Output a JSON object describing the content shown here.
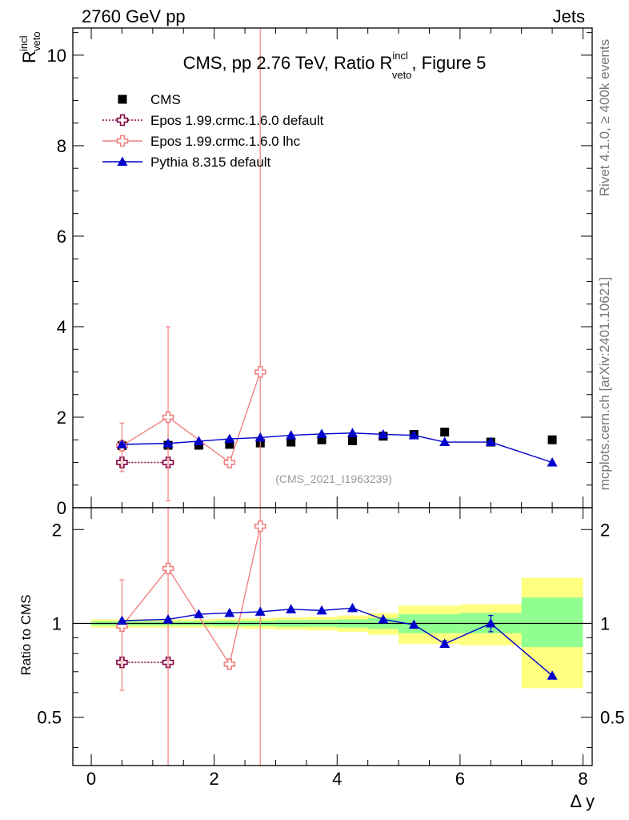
{
  "header": {
    "left": "2760 GeV pp",
    "right": "Jets"
  },
  "side": {
    "rivet": "Rivet 4.1.0, ≥ 400k events",
    "mcplots": "mcplots.cern.ch [arXiv:2401.10621]"
  },
  "chart_data": [
    {
      "type": "scatter",
      "title_main": "CMS, pp 2.76 TeV, Ratio R",
      "title_sup": "incl",
      "title_sub": "veto",
      "title_tail": ", Figure 5",
      "ylabel_main": "R",
      "ylabel_sup": "incl",
      "ylabel_sub": "veto",
      "watermark": "(CMS_2021_I1963239)",
      "ylim": [
        0,
        10.6
      ],
      "yticks": [
        0,
        2,
        4,
        6,
        8,
        10
      ],
      "ytick_labels": [
        "0",
        "2",
        "4",
        "6",
        "8",
        "10"
      ],
      "legend": [
        {
          "label": "CMS",
          "marker": "square",
          "color": "#000000"
        },
        {
          "label": "Epos 1.99.crmc.1.6.0 default",
          "marker": "cross-open",
          "color": "#800040",
          "line": "dotted"
        },
        {
          "label": "Epos 1.99.crmc.1.6.0 lhc",
          "marker": "cross-open",
          "color": "#f08080",
          "line": "solid"
        },
        {
          "label": "Pythia 8.315 default",
          "marker": "triangle",
          "color": "#0000cc",
          "line": "solid"
        }
      ],
      "series": [
        {
          "name": "CMS",
          "x": [
            0.5,
            1.25,
            1.75,
            2.25,
            2.75,
            3.25,
            3.75,
            4.25,
            4.75,
            5.25,
            5.75,
            6.5,
            7.5
          ],
          "y": [
            1.37,
            1.38,
            1.38,
            1.4,
            1.43,
            1.45,
            1.5,
            1.48,
            1.58,
            1.62,
            1.67,
            1.45,
            1.5
          ]
        },
        {
          "name": "Epos 1.99.crmc.1.6.0 default",
          "x": [
            0.5,
            1.25
          ],
          "y": [
            1.0,
            1.0
          ]
        },
        {
          "name": "Epos 1.99.crmc.1.6.0 lhc",
          "x": [
            0.5,
            1.25,
            2.25,
            2.75
          ],
          "y": [
            1.37,
            2.0,
            1.0,
            3.0
          ],
          "err_low": [
            0.57,
            1.85,
            0.0,
            3.0
          ],
          "err_high": [
            0.5,
            2.0,
            0.0,
            10.0
          ]
        },
        {
          "name": "Pythia 8.315 default",
          "x": [
            0.5,
            1.25,
            1.75,
            2.25,
            2.75,
            3.25,
            3.75,
            4.25,
            4.75,
            5.25,
            5.75,
            6.5,
            7.5
          ],
          "y": [
            1.4,
            1.42,
            1.47,
            1.52,
            1.55,
            1.6,
            1.63,
            1.65,
            1.62,
            1.6,
            1.45,
            1.45,
            1.0
          ]
        }
      ]
    },
    {
      "type": "scatter",
      "ylabel": "Ratio to CMS",
      "xlabel": "Δ y",
      "xlim": [
        -0.3,
        8.15
      ],
      "xticks": [
        0,
        2,
        4,
        6,
        8
      ],
      "xtick_labels": [
        "0",
        "2",
        "4",
        "6",
        "8"
      ],
      "ylim": [
        0.35,
        2.35
      ],
      "yticks": [
        0.5,
        1,
        2
      ],
      "ytick_labels": [
        "0.5",
        "1",
        "2"
      ],
      "bands": [
        {
          "x0": 0.0,
          "x1": 0.5,
          "green": [
            0.985,
            1.015
          ],
          "yellow": [
            0.97,
            1.03
          ]
        },
        {
          "x0": 0.5,
          "x1": 1.0,
          "green": [
            0.985,
            1.015
          ],
          "yellow": [
            0.97,
            1.03
          ]
        },
        {
          "x0": 1.0,
          "x1": 1.5,
          "green": [
            0.985,
            1.015
          ],
          "yellow": [
            0.97,
            1.03
          ]
        },
        {
          "x0": 1.5,
          "x1": 2.0,
          "green": [
            0.985,
            1.015
          ],
          "yellow": [
            0.97,
            1.03
          ]
        },
        {
          "x0": 2.0,
          "x1": 2.5,
          "green": [
            0.98,
            1.02
          ],
          "yellow": [
            0.965,
            1.035
          ]
        },
        {
          "x0": 2.5,
          "x1": 3.0,
          "green": [
            0.98,
            1.02
          ],
          "yellow": [
            0.96,
            1.04
          ]
        },
        {
          "x0": 3.0,
          "x1": 3.5,
          "green": [
            0.975,
            1.025
          ],
          "yellow": [
            0.955,
            1.045
          ]
        },
        {
          "x0": 3.5,
          "x1": 4.0,
          "green": [
            0.975,
            1.025
          ],
          "yellow": [
            0.95,
            1.05
          ]
        },
        {
          "x0": 4.0,
          "x1": 4.5,
          "green": [
            0.97,
            1.03
          ],
          "yellow": [
            0.94,
            1.06
          ]
        },
        {
          "x0": 4.5,
          "x1": 5.0,
          "green": [
            0.96,
            1.04
          ],
          "yellow": [
            0.92,
            1.08
          ]
        },
        {
          "x0": 5.0,
          "x1": 6.0,
          "green": [
            0.93,
            1.07
          ],
          "yellow": [
            0.86,
            1.14
          ]
        },
        {
          "x0": 6.0,
          "x1": 7.0,
          "green": [
            0.93,
            1.08
          ],
          "yellow": [
            0.85,
            1.15
          ]
        },
        {
          "x0": 7.0,
          "x1": 8.0,
          "green": [
            0.84,
            1.21
          ],
          "yellow": [
            0.62,
            1.4
          ]
        }
      ],
      "series": [
        {
          "name": "Epos 1.99.crmc.1.6.0 default",
          "x": [
            0.5,
            1.25
          ],
          "y": [
            0.75,
            0.75
          ]
        },
        {
          "name": "Epos 1.99.crmc.1.6.0 lhc",
          "x": [
            0.5,
            1.25,
            2.25,
            2.75
          ],
          "y": [
            0.98,
            1.5,
            0.74,
            2.05
          ],
          "err_low": [
            0.37,
            1.2,
            0.0,
            1.8
          ],
          "err_high": [
            0.4,
            1.0,
            0.0,
            1.0
          ]
        },
        {
          "name": "Pythia 8.315 default",
          "x": [
            0.5,
            1.25,
            1.75,
            2.25,
            2.75,
            3.25,
            3.75,
            4.25,
            4.75,
            5.25,
            5.75,
            6.5,
            7.5
          ],
          "y": [
            1.02,
            1.03,
            1.07,
            1.08,
            1.09,
            1.11,
            1.1,
            1.12,
            1.03,
            0.99,
            0.86,
            1.0,
            0.68
          ],
          "err_low": [
            0,
            0,
            0,
            0,
            0,
            0,
            0,
            0,
            0,
            0,
            0.02,
            0.06,
            0
          ],
          "err_high": [
            0,
            0,
            0,
            0,
            0,
            0,
            0,
            0,
            0,
            0,
            0.02,
            0.06,
            0
          ]
        }
      ]
    }
  ]
}
